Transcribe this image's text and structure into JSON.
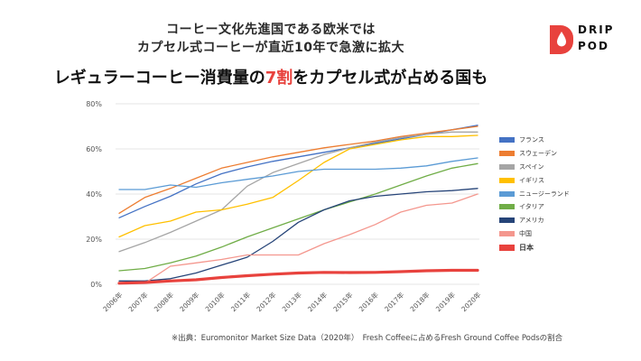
{
  "header": {
    "line1": "コーヒー文化先進国である欧米では",
    "line2": "カプセル式コーヒーが直近10年で急激に拡大",
    "line3_pre": "レギュラーコーヒー消費量の",
    "line3_highlight": "7割",
    "line3_post": "をカプセル式が占める国も"
  },
  "logo": {
    "line1": "DRIP",
    "line2": "POD",
    "icon": "drop-icon",
    "color": "#e8423d"
  },
  "source": "※出典：Euromonitor Market Size Data（2020年）　Fresh Coffeeに占めるFresh Ground Coffee Podsの割合",
  "chart_data": {
    "type": "line",
    "title": "",
    "xlabel": "",
    "ylabel": "",
    "ylim": [
      0,
      80
    ],
    "yticks": [
      "0%",
      "20%",
      "40%",
      "60%",
      "80%"
    ],
    "yticks_values": [
      0,
      20,
      40,
      60,
      80
    ],
    "grid": true,
    "legend_position": "right",
    "categories": [
      "2006年",
      "2007年",
      "2008年",
      "2009年",
      "2010年",
      "2011年",
      "2012年",
      "2013年",
      "2014年",
      "2015年",
      "2016年",
      "2017年",
      "2018年",
      "2019年",
      "2020年"
    ],
    "series": [
      {
        "name": "フランス",
        "color": "#4472c4",
        "width": 1.3,
        "values": [
          29.5,
          34.5,
          39,
          44.5,
          49,
          52,
          54.5,
          56.5,
          58.5,
          60.5,
          62.5,
          64.5,
          66.5,
          68.5,
          70.5
        ]
      },
      {
        "name": "スウェーデン",
        "color": "#ed7d31",
        "width": 1.3,
        "values": [
          31.5,
          38.5,
          42.5,
          47,
          51.5,
          54,
          56.5,
          58.5,
          60.5,
          62,
          63.5,
          65.5,
          67,
          68.5,
          70
        ]
      },
      {
        "name": "スペイン",
        "color": "#a5a5a5",
        "width": 1.3,
        "values": [
          14.5,
          18.5,
          23,
          28,
          33,
          43.5,
          49.5,
          53.5,
          57.5,
          60.5,
          63,
          65,
          66.5,
          67.5,
          67.5
        ]
      },
      {
        "name": "イギリス",
        "color": "#ffc000",
        "width": 1.3,
        "values": [
          21,
          26,
          28,
          32,
          33,
          35.5,
          38.5,
          46,
          54,
          60,
          62,
          64,
          65.5,
          65.5,
          66
        ]
      },
      {
        "name": "ニュージーランド",
        "color": "#5b9bd5",
        "width": 1.3,
        "values": [
          42,
          42,
          44,
          43,
          45,
          46.5,
          48,
          50,
          51,
          51,
          51,
          51.5,
          52.5,
          54.5,
          56
        ]
      },
      {
        "name": "イタリア",
        "color": "#70ad47",
        "width": 1.3,
        "values": [
          6,
          7,
          9.5,
          12.5,
          16.5,
          21,
          25,
          29,
          33,
          36.5,
          40,
          44,
          48,
          51.5,
          53.5
        ]
      },
      {
        "name": "アメリカ",
        "color": "#264478",
        "width": 1.3,
        "values": [
          1.5,
          1.5,
          2.5,
          5,
          8.5,
          12,
          19,
          27.5,
          33,
          37,
          39,
          40,
          41,
          41.5,
          42.5
        ]
      },
      {
        "name": "中国",
        "color": "#f4978e",
        "width": 1.3,
        "values": [
          0.5,
          0.5,
          8,
          9.5,
          11,
          13,
          13,
          13,
          18,
          22,
          26.5,
          32,
          35,
          36,
          40
        ]
      },
      {
        "name": "日本",
        "color": "#e8423d",
        "width": 3.2,
        "values": [
          0.5,
          0.8,
          1.5,
          2,
          3,
          3.8,
          4.5,
          5,
          5.3,
          5.2,
          5.3,
          5.6,
          6,
          6.2,
          6.2
        ]
      }
    ]
  }
}
